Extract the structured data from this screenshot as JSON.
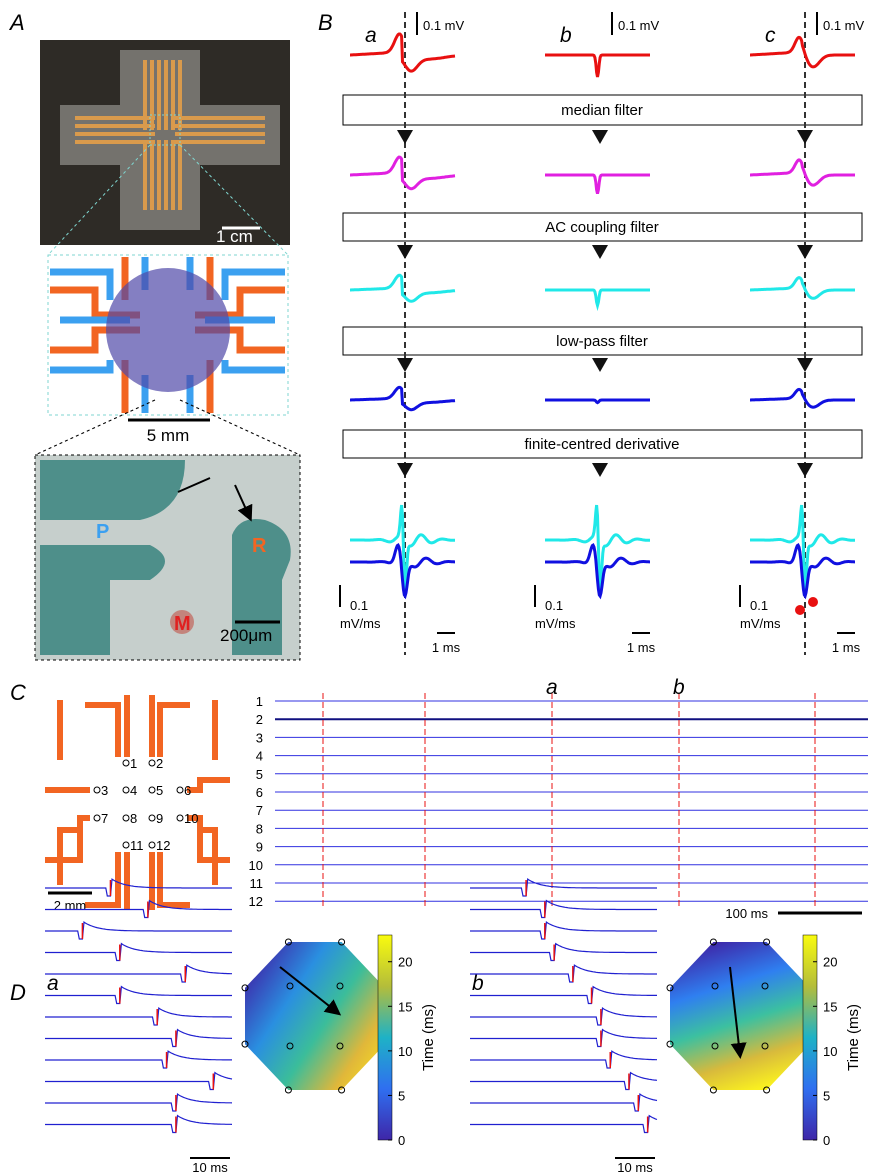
{
  "panel_labels": [
    "A",
    "B",
    "C",
    "D"
  ],
  "panel_a": {
    "photo_scale": "1 cm",
    "schematic_scale": "5 mm",
    "micro_labels": [
      "P",
      "R",
      "M"
    ],
    "micro_scale": "200μm"
  },
  "panel_b": {
    "columns": [
      {
        "label": "a",
        "amp_scale": "0.1 mV",
        "deriv_value": "0.1",
        "deriv_unit": "mV/ms",
        "time_scale": "1 ms"
      },
      {
        "label": "b",
        "amp_scale": "0.1 mV",
        "deriv_value": "0.1",
        "deriv_unit": "mV/ms",
        "time_scale": "1 ms"
      },
      {
        "label": "c",
        "amp_scale": "0.1 mV",
        "deriv_value": "0.1",
        "deriv_unit": "mV/ms",
        "time_scale": "1 ms"
      }
    ],
    "steps": [
      "median filter",
      "AC coupling filter",
      "low-pass filter",
      "finite-centred derivative"
    ]
  },
  "panel_c": {
    "electrodes": [
      "1",
      "2",
      "3",
      "4",
      "5",
      "6",
      "7",
      "8",
      "9",
      "10",
      "11",
      "12"
    ],
    "electrode_scale": "2 mm",
    "channels": [
      "1",
      "2",
      "3",
      "4",
      "5",
      "6",
      "7",
      "8",
      "9",
      "10",
      "11",
      "12"
    ],
    "markers": [
      "a",
      "b"
    ],
    "time_scale": "100 ms"
  },
  "panel_d": [
    {
      "label": "a",
      "time_scale": "10 ms",
      "colorbar": {
        "label": "Time (ms)",
        "lim": [
          0,
          23
        ],
        "ticks": [
          0,
          5,
          10,
          15,
          20
        ]
      }
    },
    {
      "label": "b",
      "time_scale": "10 ms",
      "colorbar": {
        "label": "Time (ms)",
        "lim": [
          0,
          23
        ],
        "ticks": [
          0,
          5,
          10,
          15,
          20
        ]
      }
    }
  ]
}
